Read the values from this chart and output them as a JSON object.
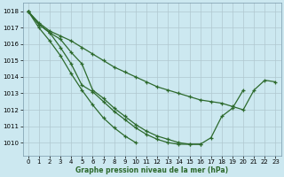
{
  "title": "Graphe pression niveau de la mer (hPa)",
  "xlim": [
    -0.5,
    23.5
  ],
  "ylim": [
    1009.2,
    1018.5
  ],
  "yticks": [
    1010,
    1011,
    1012,
    1013,
    1014,
    1015,
    1016,
    1017,
    1018
  ],
  "xticks": [
    0,
    1,
    2,
    3,
    4,
    5,
    6,
    7,
    8,
    9,
    10,
    11,
    12,
    13,
    14,
    15,
    16,
    17,
    18,
    19,
    20,
    21,
    22,
    23
  ],
  "bg_color": "#cce8f0",
  "line_color": "#2d6a2d",
  "grid_major_color": "#b0c8d0",
  "grid_minor_color": "#d0e8f0",
  "series": [
    [
      1018.0,
      1017.3,
      1016.8,
      1016.5,
      1016.2,
      1015.8,
      1015.4,
      1015.0,
      1014.6,
      1014.3,
      1014.0,
      1013.7,
      1013.4,
      1013.2,
      1013.0,
      1012.8,
      1012.6,
      1012.5,
      1012.4,
      1012.2,
      1012.0,
      1013.2,
      1013.8,
      1013.7
    ],
    [
      1018.0,
      1017.2,
      1016.7,
      1016.3,
      1015.5,
      1014.8,
      1013.2,
      1012.7,
      1012.1,
      1011.6,
      1011.1,
      1010.7,
      1010.4,
      1010.2,
      1010.0,
      1009.9,
      1009.9,
      1010.3,
      1011.6,
      1012.1,
      1013.2,
      null,
      null,
      null
    ],
    [
      1018.0,
      1017.2,
      1016.7,
      1015.8,
      1014.8,
      1013.5,
      1013.1,
      1012.5,
      1011.9,
      1011.4,
      1010.9,
      1010.5,
      1010.2,
      1010.0,
      1009.9,
      1009.9,
      1009.9,
      null,
      null,
      null,
      null,
      null,
      null,
      null
    ],
    [
      1018.0,
      1017.0,
      1016.2,
      1015.3,
      1014.2,
      1013.2,
      1012.3,
      1011.5,
      1010.9,
      1010.4,
      1010.0,
      null,
      null,
      null,
      null,
      null,
      null,
      null,
      null,
      null,
      null,
      null,
      null,
      null
    ]
  ]
}
